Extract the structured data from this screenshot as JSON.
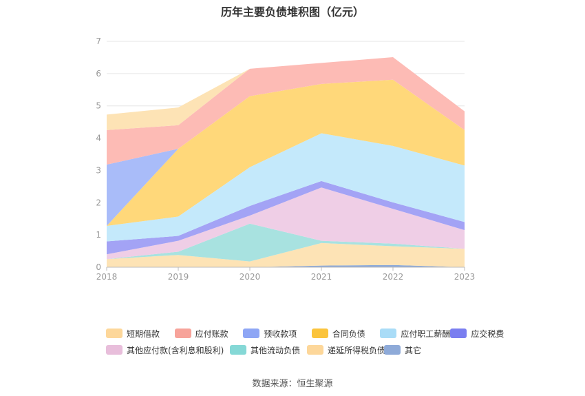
{
  "title": "历年主要负债堆积图（亿元）",
  "source_note": "数据来源：恒生聚源",
  "chart_data": {
    "type": "area",
    "stacked": true,
    "title": "历年主要负债堆积图（亿元）",
    "categories": [
      "2018",
      "2019",
      "2020",
      "2021",
      "2022",
      "2023"
    ],
    "ylim": [
      0,
      7
    ],
    "yticks": [
      0,
      1,
      2,
      3,
      4,
      5,
      6,
      7
    ],
    "grid": true,
    "legend_position": "bottom",
    "series": [
      {
        "name": "其它",
        "color": "#8eaad8",
        "values": [
          0.0,
          0.0,
          0.0,
          0.05,
          0.07,
          0.0
        ]
      },
      {
        "name": "递延所得税负债",
        "color": "#fde3b5",
        "values": [
          0.25,
          0.38,
          0.18,
          0.7,
          0.58,
          0.57
        ]
      },
      {
        "name": "其他流动负债",
        "color": "#a8e2e0",
        "values": [
          0.0,
          0.1,
          1.17,
          0.07,
          0.08,
          0.0
        ]
      },
      {
        "name": "其他应付款(含利息和股利)",
        "color": "#efcee6",
        "values": [
          0.15,
          0.34,
          0.25,
          1.65,
          1.08,
          0.58
        ]
      },
      {
        "name": "应交税费",
        "color": "#a3a3f5",
        "values": [
          0.4,
          0.15,
          0.3,
          0.2,
          0.2,
          0.25
        ]
      },
      {
        "name": "应付职工薪酬",
        "color": "#c4e9fb",
        "values": [
          0.48,
          0.6,
          1.2,
          1.48,
          1.75,
          1.75
        ]
      },
      {
        "name": "合同负债",
        "color": "#ffd87a",
        "values": [
          0.0,
          2.1,
          2.2,
          1.53,
          2.05,
          1.1
        ]
      },
      {
        "name": "预收款项",
        "color": "#a9bcf9",
        "values": [
          1.9,
          0.0,
          0.0,
          0.0,
          0.0,
          0.0
        ]
      },
      {
        "name": "应付账款",
        "color": "#fdbbb5",
        "values": [
          1.07,
          0.73,
          0.85,
          0.65,
          0.7,
          0.58
        ]
      },
      {
        "name": "短期借款",
        "color": "#fde3b5",
        "values": [
          0.48,
          0.55,
          0.0,
          0.0,
          0.0,
          0.0
        ]
      }
    ],
    "legend_rows": [
      [
        {
          "label": "短期借款",
          "color": "#fdd79a"
        },
        {
          "label": "应付账款",
          "color": "#f7a39a"
        },
        {
          "label": "预收款项",
          "color": "#8ea6f5"
        },
        {
          "label": "合同负债",
          "color": "#fbc43c"
        },
        {
          "label": "应付职工薪酬",
          "color": "#a9dcf7"
        },
        {
          "label": "应交税费",
          "color": "#7a7ef0"
        }
      ],
      [
        {
          "label": "其他应付款(含利息和股利)",
          "color": "#e8bedb"
        },
        {
          "label": "其他流动负债",
          "color": "#85d8d6"
        },
        {
          "label": "递延所得税负债",
          "color": "#fdd79a"
        },
        {
          "label": "其它",
          "color": "#8eaad8"
        }
      ]
    ]
  }
}
